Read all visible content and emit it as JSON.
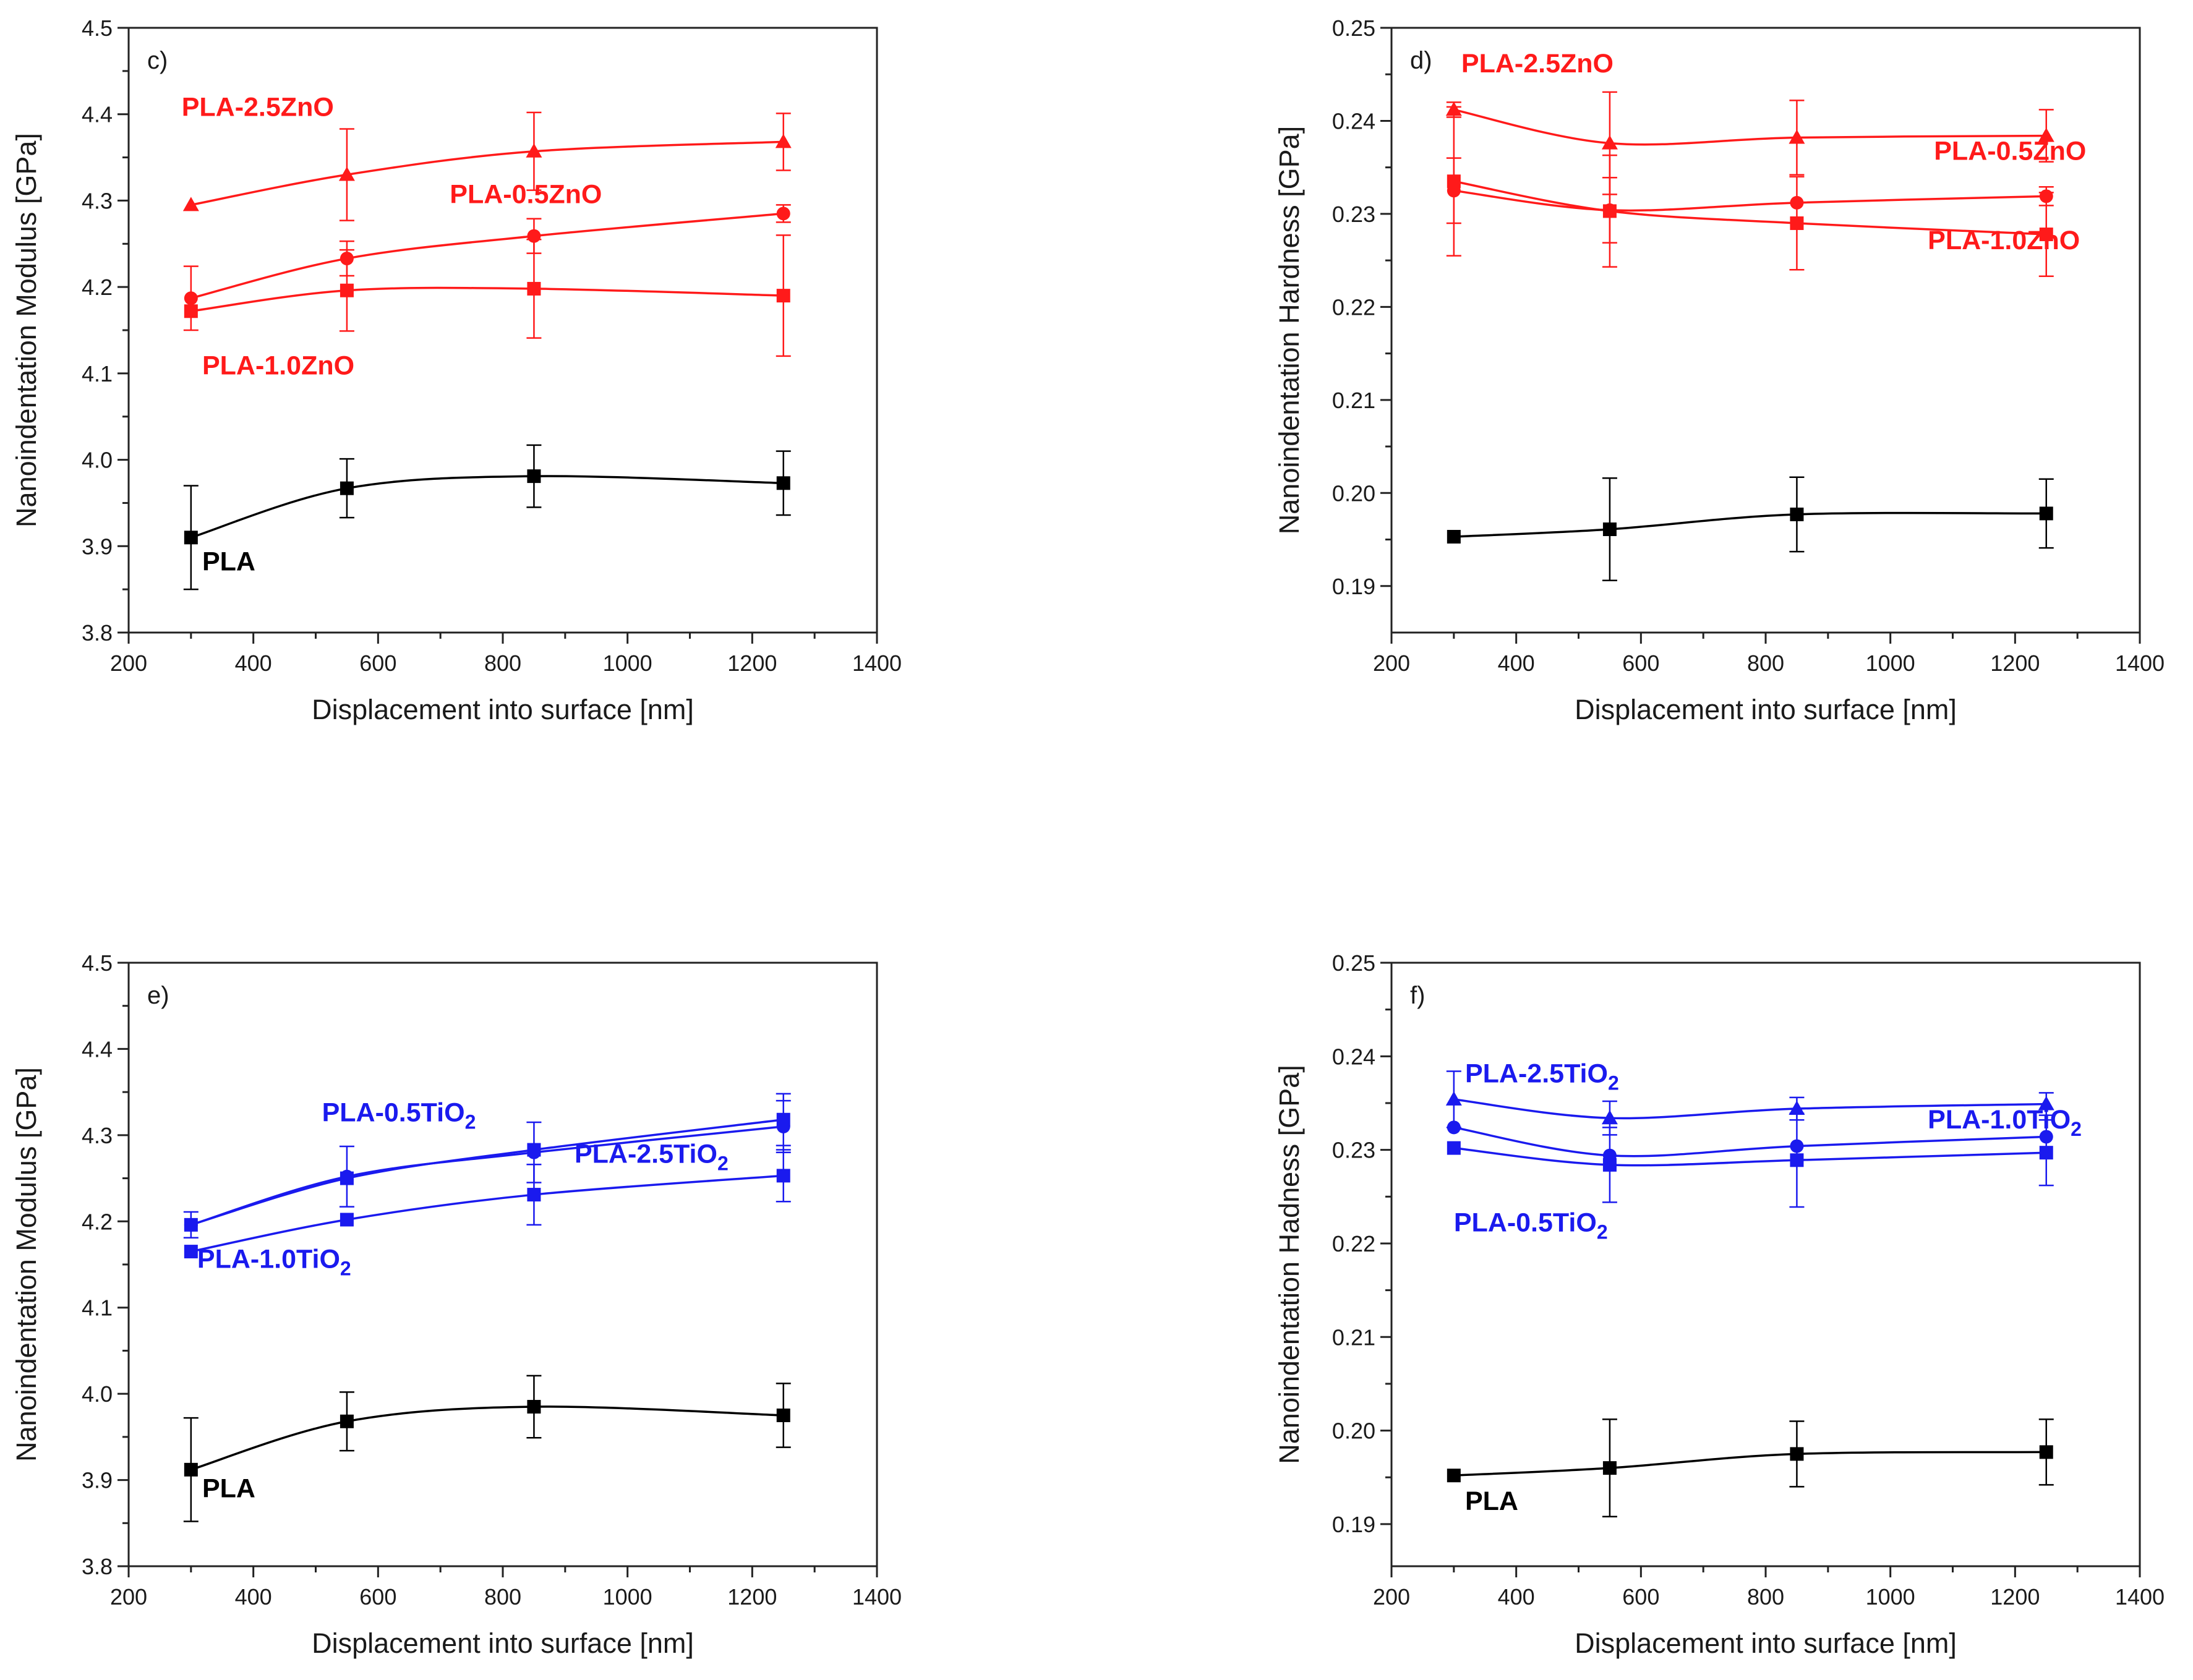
{
  "colors": {
    "zno": "#ff1a1a",
    "tio2": "#1a1aee",
    "pla": "#000000"
  },
  "chart_data": [
    {
      "id": "c",
      "type": "line",
      "panel_label": "c)",
      "xlabel": "Displacement into surface [nm]",
      "ylabel": "Nanoindentation Modulus [GPa]",
      "xlim": [
        200,
        1400
      ],
      "ylim": [
        3.8,
        4.5
      ],
      "xticks": [
        200,
        400,
        600,
        800,
        1000,
        1200,
        1400
      ],
      "yticks": [
        3.8,
        3.9,
        4.0,
        4.1,
        4.2,
        4.3,
        4.4,
        4.5
      ],
      "x": [
        300,
        550,
        850,
        1250
      ],
      "series": [
        {
          "name": "PLA-2.5ZnO",
          "label": "PLA-2.5ZnO",
          "color": "zno",
          "marker": "triangle",
          "values": [
            4.295,
            4.33,
            4.357,
            4.368
          ],
          "errors": [
            0.0,
            0.053,
            0.045,
            0.033
          ]
        },
        {
          "name": "PLA-0.5ZnO",
          "label": "PLA-0.5ZnO",
          "color": "zno",
          "marker": "circle",
          "values": [
            4.187,
            4.233,
            4.259,
            4.285
          ],
          "errors": [
            0.037,
            0.02,
            0.02,
            0.01
          ]
        },
        {
          "name": "PLA-1.0ZnO",
          "label": "PLA-1.0ZnO",
          "color": "zno",
          "marker": "square",
          "values": [
            4.172,
            4.196,
            4.198,
            4.19
          ],
          "errors": [
            0.0,
            0.047,
            0.057,
            0.07
          ]
        },
        {
          "name": "PLA",
          "label": "PLA",
          "color": "pla",
          "marker": "square",
          "values": [
            3.91,
            3.967,
            3.981,
            3.973
          ],
          "errors": [
            0.06,
            0.034,
            0.036,
            0.037
          ]
        }
      ]
    },
    {
      "id": "d",
      "type": "line",
      "panel_label": "d)",
      "xlabel": "Displacement into surface [nm]",
      "ylabel": "Nanoindentation Hardness [GPa]",
      "xlim": [
        200,
        1400
      ],
      "ylim": [
        0.185,
        0.25
      ],
      "xticks": [
        200,
        400,
        600,
        800,
        1000,
        1200,
        1400
      ],
      "yticks": [
        0.19,
        0.2,
        0.21,
        0.22,
        0.23,
        0.24,
        0.25
      ],
      "x": [
        300,
        550,
        850,
        1250
      ],
      "series": [
        {
          "name": "PLA-2.5ZnO",
          "label": "PLA-2.5ZnO",
          "color": "zno",
          "marker": "triangle",
          "values": [
            0.2412,
            0.2376,
            0.2382,
            0.2384
          ],
          "errors": [
            0.0008,
            0.0055,
            0.004,
            0.0028
          ]
        },
        {
          "name": "PLA-0.5ZnO",
          "label": "PLA-0.5ZnO",
          "color": "zno",
          "marker": "circle",
          "values": [
            0.2325,
            0.2304,
            0.2312,
            0.2319
          ],
          "errors": [
            0.0035,
            0.0035,
            0.0,
            0.001
          ]
        },
        {
          "name": "PLA-1.0ZnO",
          "label": "PLA-1.0ZnO",
          "color": "zno",
          "marker": "square",
          "values": [
            0.2335,
            0.2303,
            0.229,
            0.2278
          ],
          "errors": [
            0.008,
            0.006,
            0.005,
            0.0045
          ]
        },
        {
          "name": "PLA",
          "label": "PLA",
          "color": "pla",
          "marker": "square",
          "values": [
            0.1953,
            0.1961,
            0.1977,
            0.1978
          ],
          "errors": [
            0.0,
            0.0055,
            0.004,
            0.0037
          ]
        }
      ]
    },
    {
      "id": "e",
      "type": "line",
      "panel_label": "e)",
      "xlabel": "Displacement into surface [nm]",
      "ylabel": "Nanoindentation Modulus [GPa]",
      "xlim": [
        200,
        1400
      ],
      "ylim": [
        3.8,
        4.5
      ],
      "xticks": [
        200,
        400,
        600,
        800,
        1000,
        1200,
        1400
      ],
      "yticks": [
        3.8,
        3.9,
        4.0,
        4.1,
        4.2,
        4.3,
        4.4,
        4.5
      ],
      "x": [
        300,
        550,
        850,
        1250
      ],
      "series": [
        {
          "name": "PLA-0.5TiO2",
          "label": "PLA-0.5TiO",
          "sub": "2",
          "color": "tio2",
          "marker": "circle",
          "values": [
            4.196,
            4.252,
            4.28,
            4.31
          ],
          "errors": [
            0.015,
            0.035,
            0.035,
            0.03
          ]
        },
        {
          "name": "PLA-2.5TiO2",
          "label": "PLA-2.5TiO",
          "sub": "2",
          "color": "tio2",
          "marker": "square",
          "values": [
            4.196,
            4.25,
            4.283,
            4.318
          ],
          "errors": [
            0.0,
            0.0,
            0.0,
            0.03
          ]
        },
        {
          "name": "PLA-1.0TiO2",
          "label": "PLA-1.0TiO",
          "sub": "2",
          "color": "tio2",
          "marker": "square",
          "values": [
            4.165,
            4.202,
            4.231,
            4.253
          ],
          "errors": [
            0.0,
            0.0,
            0.035,
            0.03
          ]
        },
        {
          "name": "PLA",
          "label": "PLA",
          "color": "pla",
          "marker": "square",
          "values": [
            3.912,
            3.968,
            3.985,
            3.975
          ],
          "errors": [
            0.06,
            0.034,
            0.036,
            0.037
          ]
        }
      ]
    },
    {
      "id": "f",
      "type": "line",
      "panel_label": "f)",
      "xlabel": "Displacement into surface [nm]",
      "ylabel": "Nanoindentation Hadness [GPa]",
      "xlim": [
        200,
        1400
      ],
      "ylim": [
        0.1855,
        0.25
      ],
      "xticks": [
        200,
        400,
        600,
        800,
        1000,
        1200,
        1400
      ],
      "yticks": [
        0.19,
        0.2,
        0.21,
        0.22,
        0.23,
        0.24,
        0.25
      ],
      "x": [
        300,
        550,
        850,
        1250
      ],
      "series": [
        {
          "name": "PLA-2.5TiO2",
          "label": "PLA-2.5TiO",
          "sub": "2",
          "color": "tio2",
          "marker": "triangle",
          "values": [
            0.2354,
            0.2334,
            0.2344,
            0.2349
          ],
          "errors": [
            0.003,
            0.0018,
            0.0012,
            0.0012
          ]
        },
        {
          "name": "PLA-1.0TiO2",
          "label": "PLA-1.0TiO",
          "sub": "2",
          "color": "tio2",
          "marker": "circle",
          "values": [
            0.2324,
            0.2294,
            0.2304,
            0.2314
          ],
          "errors": [
            0.0,
            0.0,
            0.0,
            0.0
          ]
        },
        {
          "name": "PLA-0.5TiO2",
          "label": "PLA-0.5TiO",
          "sub": "2",
          "color": "tio2",
          "marker": "square",
          "values": [
            0.2302,
            0.2284,
            0.2289,
            0.2297
          ],
          "errors": [
            0.0,
            0.004,
            0.005,
            0.0035
          ]
        },
        {
          "name": "PLA",
          "label": "PLA",
          "color": "pla",
          "marker": "square",
          "values": [
            0.1952,
            0.196,
            0.1975,
            0.1977
          ],
          "errors": [
            0.0,
            0.0052,
            0.0035,
            0.0035
          ]
        }
      ]
    }
  ]
}
